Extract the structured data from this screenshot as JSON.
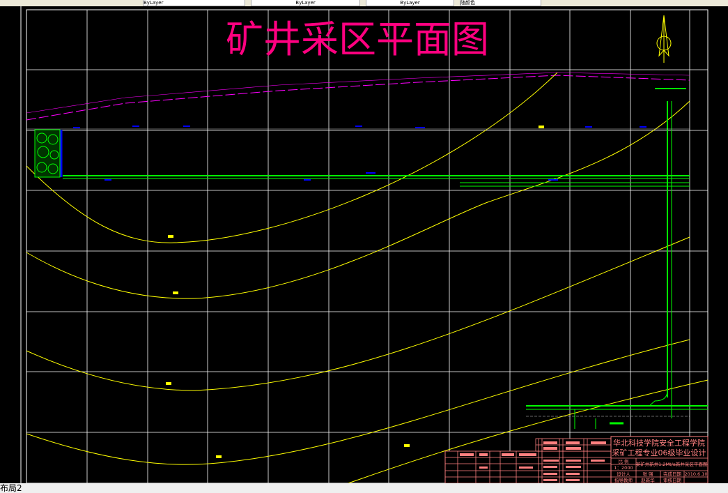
{
  "toolbar": {
    "layer_fields": [
      "ByLayer",
      "ByLayer",
      "ByLayer",
      "随颜色"
    ]
  },
  "drawing": {
    "title": "矿井采区平面图",
    "north_arrow_icon": "north-arrow-icon",
    "colors": {
      "title": "#ff0080",
      "grid": "#ffffff",
      "contour": "#ffff00",
      "roadway": "#00ff00",
      "boundary": "#ff00ff",
      "titleblock": "#ff8080"
    }
  },
  "titleblock": {
    "school": "华北科技学院安全工程学院",
    "project": "采矿工程专业06级毕业设计",
    "scale_label": "比 例",
    "scale_value": "1：2000",
    "drawing_name": "某矿井新井1.2Mt/a新井采区平面图",
    "designer_label": "设计人",
    "designer": "张 强",
    "finish_date_label": "完成日期",
    "finish_date": "2010.6.10",
    "advisor_label": "指导教师",
    "advisor": "赵新华",
    "review_date_label": "审核日期"
  },
  "status": {
    "layout_tab": "布局2"
  }
}
